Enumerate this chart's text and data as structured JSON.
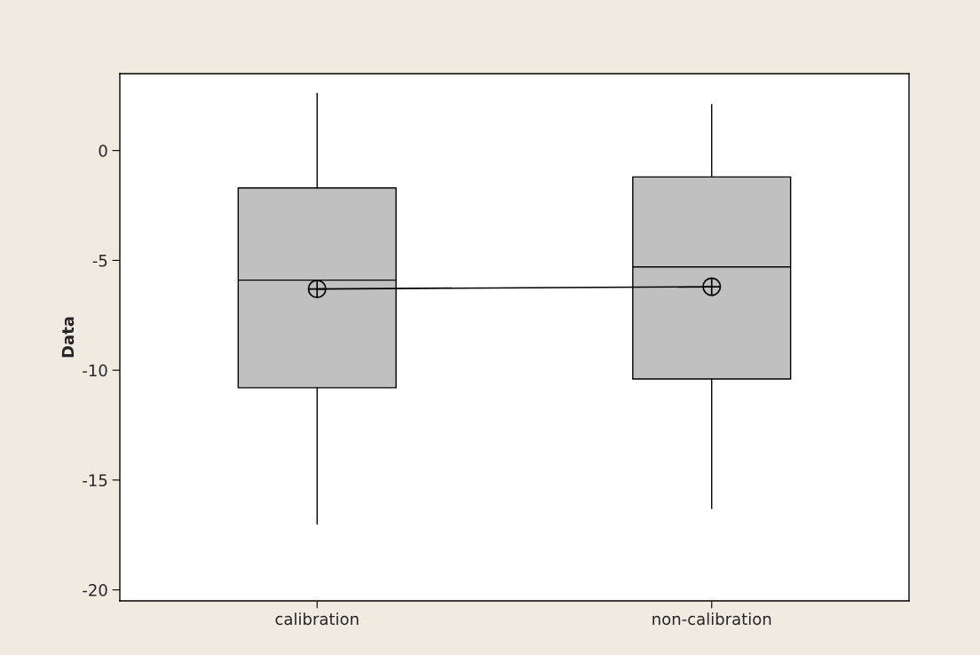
{
  "chart_data": {
    "type": "box",
    "ylabel": "Data",
    "categories": [
      "calibration",
      "non-calibration"
    ],
    "boxes": [
      {
        "low": -17.0,
        "q1": -10.8,
        "median": -5.9,
        "q3": -1.7,
        "high": 2.6,
        "mean": -6.3
      },
      {
        "low": -16.3,
        "q1": -10.4,
        "median": -5.3,
        "q3": -1.2,
        "high": 2.1,
        "mean": -6.2
      }
    ],
    "series": [
      {
        "type": "line",
        "color": "#000000",
        "values": [
          -6.3,
          -6.2
        ],
        "marker": "none"
      }
    ],
    "color": "#c0c0c0",
    "ylim": [
      -20.5,
      3.5
    ],
    "yticks": [
      -20,
      -15,
      -10,
      -5,
      0
    ],
    "grid": false,
    "legend": false
  }
}
